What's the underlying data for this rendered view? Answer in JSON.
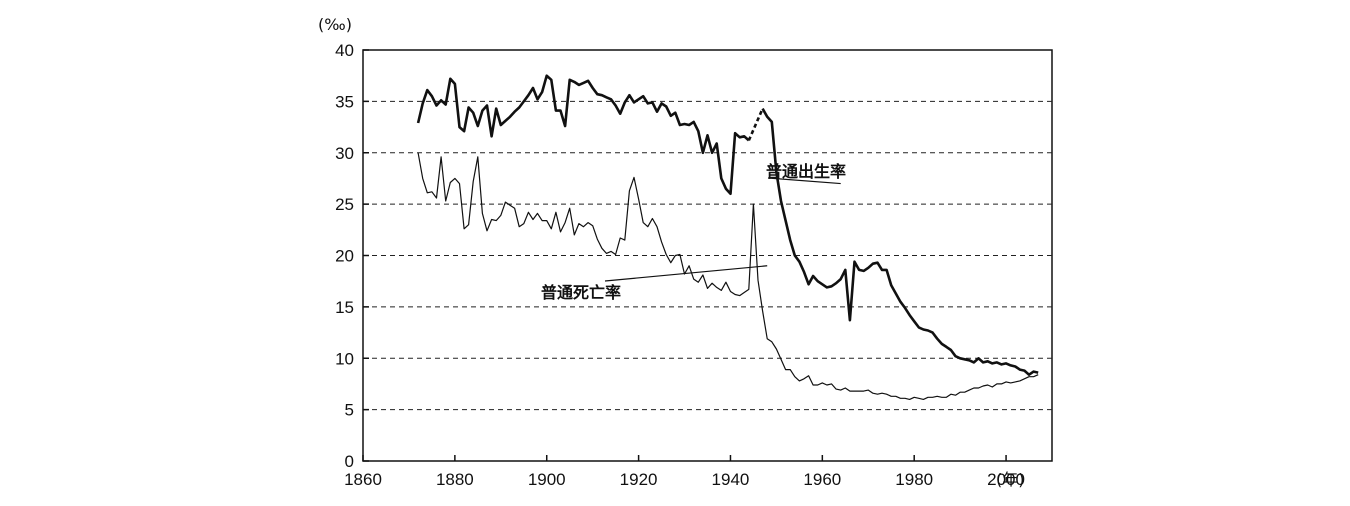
{
  "chart_data": {
    "type": "line",
    "title": "",
    "ylabel": "(‰)",
    "xlabel": "(年)",
    "xlim": [
      1860,
      2010
    ],
    "ylim": [
      0,
      40
    ],
    "x_ticks": [
      1860,
      1880,
      1900,
      1920,
      1940,
      1960,
      1980,
      2000
    ],
    "y_ticks": [
      0,
      5,
      10,
      15,
      20,
      25,
      30,
      35,
      40
    ],
    "grid": "horizontal dashed",
    "series": [
      {
        "name": "普通出生率",
        "color": "#111111",
        "style": "thick",
        "gap_dashed_between": [
          1944,
          1947
        ],
        "x": [
          1872,
          1873,
          1874,
          1875,
          1876,
          1877,
          1878,
          1879,
          1880,
          1881,
          1882,
          1883,
          1884,
          1885,
          1886,
          1887,
          1888,
          1889,
          1890,
          1891,
          1892,
          1893,
          1894,
          1895,
          1896,
          1897,
          1898,
          1899,
          1900,
          1901,
          1902,
          1903,
          1904,
          1905,
          1906,
          1907,
          1908,
          1909,
          1910,
          1911,
          1912,
          1913,
          1914,
          1915,
          1916,
          1917,
          1918,
          1919,
          1920,
          1921,
          1922,
          1923,
          1924,
          1925,
          1926,
          1927,
          1928,
          1929,
          1930,
          1931,
          1932,
          1933,
          1934,
          1935,
          1936,
          1937,
          1938,
          1939,
          1940,
          1941,
          1942,
          1943,
          1944,
          1947,
          1948,
          1949,
          1950,
          1951,
          1952,
          1953,
          1954,
          1955,
          1956,
          1957,
          1958,
          1959,
          1960,
          1961,
          1962,
          1963,
          1964,
          1965,
          1966,
          1967,
          1968,
          1969,
          1970,
          1971,
          1972,
          1973,
          1974,
          1975,
          1976,
          1977,
          1978,
          1979,
          1980,
          1981,
          1982,
          1983,
          1984,
          1985,
          1986,
          1987,
          1988,
          1989,
          1990,
          1991,
          1992,
          1993,
          1994,
          1995,
          1996,
          1997,
          1998,
          1999,
          2000,
          2001,
          2002,
          2003,
          2004,
          2005,
          2006,
          2007
        ],
        "values": [
          32.9,
          34.8,
          36.1,
          35.5,
          34.6,
          35.1,
          34.7,
          37.2,
          36.7,
          32.5,
          32.1,
          34.4,
          33.9,
          32.6,
          34.1,
          34.6,
          31.6,
          34.3,
          32.7,
          33.1,
          33.5,
          34.0,
          34.4,
          35.0,
          35.6,
          36.3,
          35.2,
          35.9,
          37.5,
          37.1,
          34.1,
          34.1,
          32.6,
          37.1,
          36.9,
          36.6,
          36.8,
          37.0,
          36.3,
          35.7,
          35.6,
          35.4,
          35.2,
          34.6,
          33.8,
          34.9,
          35.6,
          34.9,
          35.2,
          35.5,
          34.8,
          34.9,
          34.0,
          34.8,
          34.5,
          33.6,
          33.9,
          32.7,
          32.8,
          32.7,
          33.0,
          32.1,
          30.0,
          31.7,
          30.0,
          30.9,
          27.5,
          26.5,
          26.0,
          31.9,
          31.5,
          31.6,
          31.2,
          34.3,
          33.5,
          33.0,
          28.1,
          25.3,
          23.4,
          21.5,
          20.0,
          19.4,
          18.4,
          17.2,
          18.0,
          17.5,
          17.2,
          16.9,
          17.0,
          17.3,
          17.7,
          18.6,
          13.7,
          19.4,
          18.6,
          18.5,
          18.8,
          19.2,
          19.3,
          18.6,
          18.6,
          17.1,
          16.3,
          15.5,
          14.9,
          14.2,
          13.6,
          13.0,
          12.8,
          12.7,
          12.5,
          11.9,
          11.4,
          11.1,
          10.8,
          10.2,
          10.0,
          9.9,
          9.8,
          9.6,
          10.0,
          9.6,
          9.7,
          9.5,
          9.6,
          9.4,
          9.5,
          9.3,
          9.2,
          8.9,
          8.8,
          8.4,
          8.7,
          8.6
        ]
      },
      {
        "name": "普通死亡率",
        "color": "#111111",
        "style": "thin",
        "x": [
          1872,
          1873,
          1874,
          1875,
          1876,
          1877,
          1878,
          1879,
          1880,
          1881,
          1882,
          1883,
          1884,
          1885,
          1886,
          1887,
          1888,
          1889,
          1890,
          1891,
          1892,
          1893,
          1894,
          1895,
          1896,
          1897,
          1898,
          1899,
          1900,
          1901,
          1902,
          1903,
          1904,
          1905,
          1906,
          1907,
          1908,
          1909,
          1910,
          1911,
          1912,
          1913,
          1914,
          1915,
          1916,
          1917,
          1918,
          1919,
          1920,
          1921,
          1922,
          1923,
          1924,
          1925,
          1926,
          1927,
          1928,
          1929,
          1930,
          1931,
          1932,
          1933,
          1934,
          1935,
          1936,
          1937,
          1938,
          1939,
          1940,
          1941,
          1942,
          1943,
          1944,
          1945,
          1946,
          1947,
          1948,
          1949,
          1950,
          1951,
          1952,
          1953,
          1954,
          1955,
          1956,
          1957,
          1958,
          1959,
          1960,
          1961,
          1962,
          1963,
          1964,
          1965,
          1966,
          1967,
          1968,
          1969,
          1970,
          1971,
          1972,
          1973,
          1974,
          1975,
          1976,
          1977,
          1978,
          1979,
          1980,
          1981,
          1982,
          1983,
          1984,
          1985,
          1986,
          1987,
          1988,
          1989,
          1990,
          1991,
          1992,
          1993,
          1994,
          1995,
          1996,
          1997,
          1998,
          1999,
          2000,
          2001,
          2002,
          2003,
          2004,
          2005,
          2006,
          2007
        ],
        "values": [
          30.0,
          27.5,
          26.1,
          26.2,
          25.6,
          29.6,
          25.3,
          27.1,
          27.5,
          27.0,
          22.6,
          23.0,
          27.2,
          29.6,
          24.1,
          22.4,
          23.5,
          23.4,
          23.9,
          25.2,
          24.9,
          24.6,
          22.8,
          23.1,
          24.2,
          23.5,
          24.1,
          23.4,
          23.4,
          22.6,
          24.2,
          22.3,
          23.2,
          24.6,
          22.0,
          23.1,
          22.8,
          23.2,
          22.9,
          21.6,
          20.7,
          20.2,
          20.4,
          20.1,
          21.7,
          21.5,
          26.3,
          27.6,
          25.5,
          23.2,
          22.8,
          23.6,
          22.8,
          21.3,
          20.1,
          19.3,
          20.0,
          20.1,
          18.2,
          19.0,
          17.7,
          17.4,
          18.1,
          16.8,
          17.3,
          16.9,
          16.6,
          17.4,
          16.5,
          16.2,
          16.1,
          16.4,
          16.7,
          25.0,
          17.6,
          14.6,
          11.9,
          11.6,
          10.9,
          9.9,
          8.9,
          8.9,
          8.2,
          7.8,
          8.0,
          8.3,
          7.4,
          7.4,
          7.6,
          7.4,
          7.5,
          7.0,
          6.9,
          7.1,
          6.8,
          6.8,
          6.8,
          6.8,
          6.9,
          6.6,
          6.5,
          6.6,
          6.5,
          6.3,
          6.3,
          6.1,
          6.1,
          6.0,
          6.2,
          6.1,
          6.0,
          6.2,
          6.2,
          6.3,
          6.2,
          6.2,
          6.5,
          6.4,
          6.7,
          6.7,
          6.9,
          7.1,
          7.1,
          7.3,
          7.4,
          7.2,
          7.5,
          7.5,
          7.7,
          7.6,
          7.7,
          7.8,
          8.0,
          8.2,
          8.2,
          8.4
        ]
      }
    ],
    "annotations": [
      {
        "text": "普通出生率",
        "points_to": [
          1964,
          27
        ]
      },
      {
        "text": "普通死亡率",
        "points_to": [
          1948,
          19
        ]
      }
    ]
  }
}
